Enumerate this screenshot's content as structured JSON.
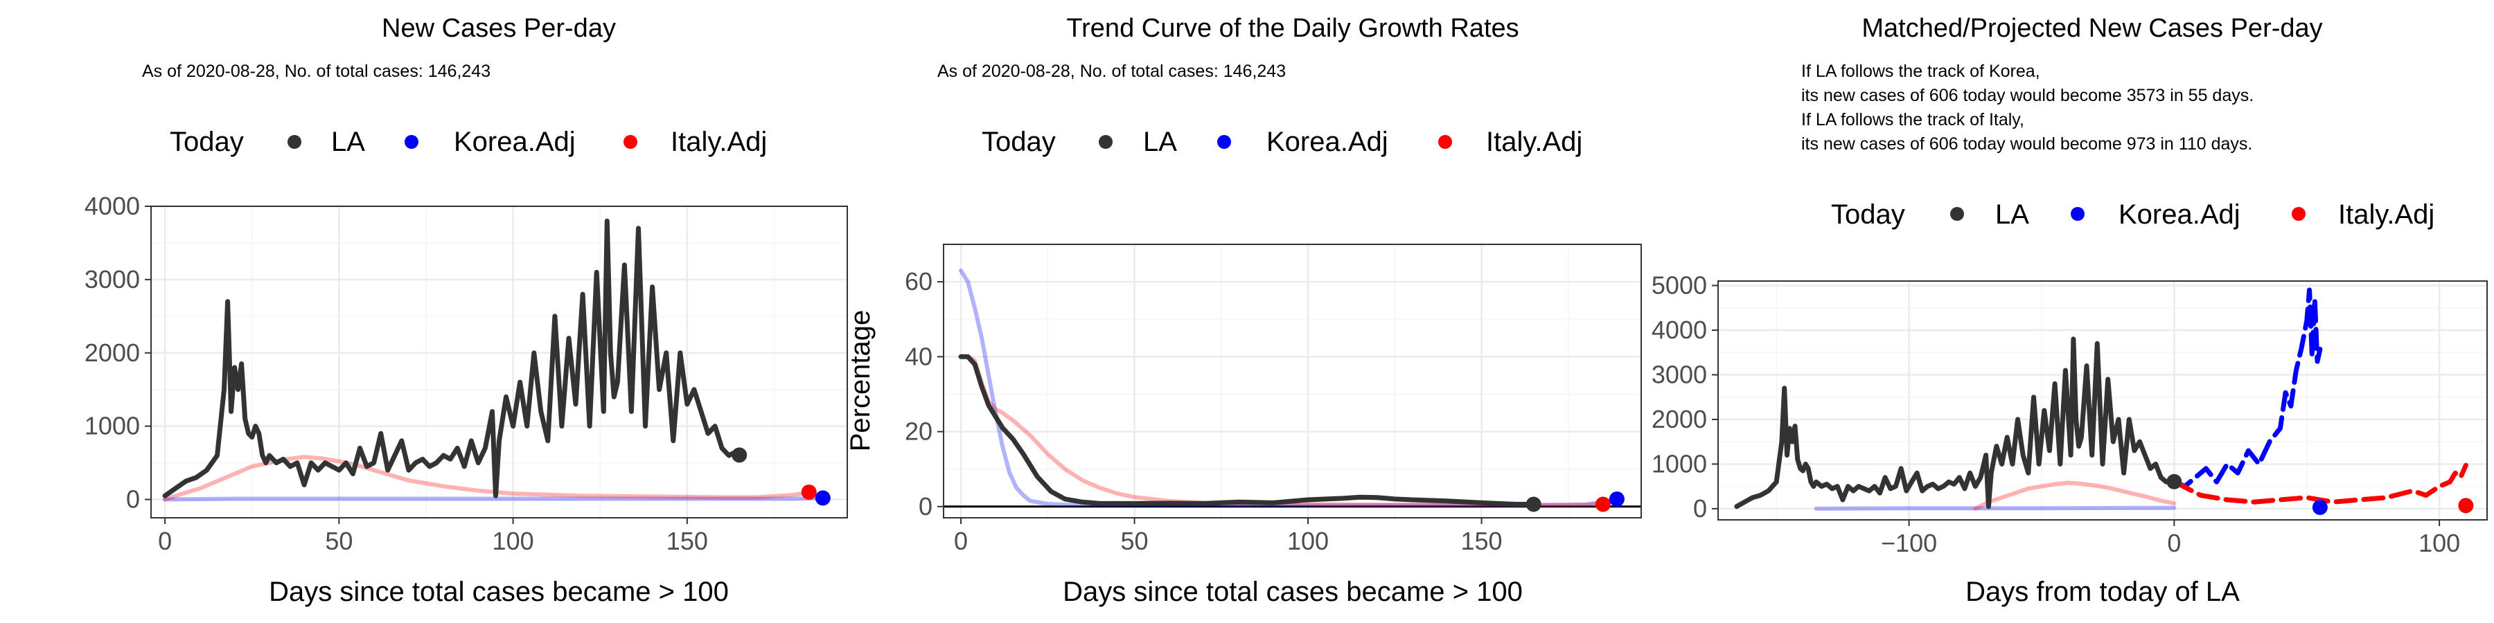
{
  "colors": {
    "LA": "#333333",
    "Korea.Adj": "#0000ff",
    "Italy.Adj": "#ff0000",
    "grid_major": "#ebebeb",
    "grid_minor": "#f5f5f5",
    "panel_border": "#333333"
  },
  "legend": {
    "label": "Today",
    "entries": [
      "LA",
      "Korea.Adj",
      "Italy.Adj"
    ]
  },
  "chart_data": [
    {
      "type": "line",
      "title": "New Cases Per-day",
      "notes": [
        "As of 2020-08-28, No. of total cases: 146,243"
      ],
      "xlabel": "Days since total cases became > 100",
      "ylabel": "",
      "xlim": [
        -4,
        196
      ],
      "ylim": [
        -250,
        4000
      ],
      "xticks": [
        0,
        50,
        100,
        150
      ],
      "yticks": [
        0,
        1000,
        2000,
        3000,
        4000
      ],
      "legend_position": "top",
      "grid": true,
      "hline_zero": false,
      "series": [
        {
          "name": "LA",
          "style": "solid",
          "opacity": 1,
          "x": [
            0,
            3,
            6,
            9,
            12,
            15,
            17,
            18,
            19,
            20,
            21,
            22,
            23,
            24,
            25,
            26,
            27,
            28,
            29,
            30,
            32,
            34,
            36,
            38,
            40,
            42,
            44,
            46,
            48,
            50,
            52,
            54,
            56,
            58,
            60,
            62,
            64,
            66,
            68,
            70,
            72,
            74,
            76,
            78,
            80,
            82,
            84,
            86,
            88,
            90,
            92,
            94,
            95,
            96,
            98,
            100,
            102,
            104,
            106,
            108,
            110,
            112,
            114,
            116,
            118,
            120,
            122,
            124,
            126,
            127,
            128,
            129,
            130,
            132,
            134,
            136,
            138,
            140,
            142,
            144,
            146,
            148,
            150,
            152,
            154,
            156,
            158,
            160,
            162,
            164,
            165
          ],
          "y": [
            50,
            150,
            250,
            300,
            400,
            600,
            1500,
            2700,
            1200,
            1800,
            1500,
            1850,
            1100,
            900,
            850,
            1000,
            900,
            600,
            500,
            600,
            500,
            550,
            450,
            500,
            200,
            500,
            400,
            500,
            450,
            400,
            500,
            350,
            700,
            450,
            500,
            900,
            400,
            600,
            800,
            400,
            500,
            550,
            450,
            500,
            600,
            550,
            700,
            450,
            800,
            500,
            700,
            1200,
            50,
            800,
            1400,
            1000,
            1600,
            1000,
            2000,
            1200,
            800,
            2500,
            1000,
            2200,
            1300,
            2800,
            1000,
            3100,
            1200,
            3800,
            2000,
            1400,
            1600,
            3200,
            1200,
            3700,
            1000,
            2900,
            1500,
            2000,
            800,
            2000,
            1300,
            1500,
            1200,
            900,
            1000,
            700,
            600,
            650,
            600
          ]
        },
        {
          "name": "Korea.Adj",
          "style": "solid",
          "opacity": 0.3,
          "x": [
            0,
            20,
            50,
            100,
            150,
            180,
            190
          ],
          "y": [
            0,
            10,
            10,
            10,
            10,
            10,
            20
          ]
        },
        {
          "name": "Italy.Adj",
          "style": "solid",
          "opacity": 0.3,
          "x": [
            0,
            5,
            10,
            15,
            20,
            25,
            30,
            35,
            40,
            45,
            50,
            55,
            60,
            65,
            70,
            80,
            90,
            100,
            120,
            140,
            160,
            170,
            180,
            186
          ],
          "y": [
            0,
            80,
            150,
            250,
            350,
            450,
            500,
            550,
            580,
            560,
            520,
            470,
            400,
            330,
            260,
            180,
            120,
            80,
            50,
            40,
            30,
            30,
            60,
            100
          ]
        }
      ],
      "today_points": [
        {
          "name": "LA",
          "x": 165,
          "y": 606
        },
        {
          "name": "Italy.Adj",
          "x": 185,
          "y": 100
        },
        {
          "name": "Korea.Adj",
          "x": 189,
          "y": 20
        }
      ]
    },
    {
      "type": "line",
      "title": "Trend Curve of the Daily Growth Rates",
      "notes": [
        "As of 2020-08-28, No. of total cases: 146,243"
      ],
      "xlabel": "Days since total cases became > 100",
      "ylabel": "Percentage",
      "xlim": [
        -5,
        196
      ],
      "ylim": [
        -3,
        70
      ],
      "xticks": [
        0,
        50,
        100,
        150
      ],
      "yticks": [
        0,
        20,
        40,
        60
      ],
      "legend_position": "top",
      "grid": true,
      "hline_zero": true,
      "series": [
        {
          "name": "LA",
          "style": "solid",
          "opacity": 1,
          "x": [
            0,
            2,
            4,
            6,
            8,
            10,
            12,
            15,
            18,
            22,
            26,
            30,
            35,
            40,
            50,
            60,
            70,
            80,
            90,
            100,
            110,
            115,
            120,
            125,
            130,
            140,
            150,
            160,
            165
          ],
          "y": [
            40,
            40,
            38,
            32,
            27,
            24,
            21,
            18,
            14,
            8,
            4,
            2,
            1.2,
            0.8,
            0.8,
            0.9,
            0.8,
            1.2,
            1.0,
            1.8,
            2.2,
            2.5,
            2.4,
            2.0,
            1.8,
            1.5,
            1.0,
            0.6,
            0.6
          ]
        },
        {
          "name": "Korea.Adj",
          "style": "solid",
          "opacity": 0.3,
          "x": [
            0,
            2,
            4,
            6,
            8,
            10,
            12,
            14,
            16,
            18,
            20,
            25,
            30,
            40,
            60,
            100,
            150,
            180,
            186,
            190
          ],
          "y": [
            63,
            60,
            53,
            45,
            35,
            25,
            16,
            9,
            5,
            3,
            1.5,
            0.7,
            0.5,
            0.4,
            0.3,
            0.3,
            0.3,
            0.5,
            1.5,
            2
          ]
        },
        {
          "name": "Italy.Adj",
          "style": "solid",
          "opacity": 0.3,
          "x": [
            0,
            2,
            4,
            6,
            8,
            10,
            12,
            15,
            20,
            25,
            30,
            35,
            40,
            45,
            50,
            60,
            70,
            80,
            100,
            120,
            150,
            170,
            180,
            185
          ],
          "y": [
            40,
            40,
            39,
            33,
            28,
            26,
            25,
            23,
            19,
            14,
            10,
            7,
            5,
            3.5,
            2.5,
            1.5,
            1.0,
            0.8,
            0.6,
            0.5,
            0.5,
            0.4,
            0.5,
            0.6
          ]
        }
      ],
      "today_points": [
        {
          "name": "LA",
          "x": 165,
          "y": 0.6
        },
        {
          "name": "Italy.Adj",
          "x": 185,
          "y": 0.6
        },
        {
          "name": "Korea.Adj",
          "x": 189,
          "y": 2
        }
      ]
    },
    {
      "type": "line",
      "title": "Matched/Projected New Cases Per-day",
      "notes": [
        "If LA follows the track of Korea,",
        "its new cases of 606 today would become 3573 in 55 days.",
        "If LA follows the track of Italy,",
        "its new cases of 606 today would become 973 in 110 days."
      ],
      "xlabel": "Days from today of LA",
      "ylabel": "",
      "xlim": [
        -172,
        118
      ],
      "ylim": [
        -250,
        5100
      ],
      "xticks": [
        -100,
        0,
        100
      ],
      "yticks": [
        0,
        1000,
        2000,
        3000,
        4000,
        5000
      ],
      "legend_position": "top",
      "grid": true,
      "hline_zero": false,
      "series": [
        {
          "name": "LA",
          "style": "solid",
          "opacity": 1,
          "x": [
            -165,
            -162,
            -159,
            -156,
            -153,
            -150,
            -148,
            -147,
            -146,
            -145,
            -144,
            -143,
            -142,
            -141,
            -140,
            -139,
            -138,
            -137,
            -136,
            -135,
            -133,
            -131,
            -129,
            -127,
            -125,
            -123,
            -121,
            -119,
            -117,
            -115,
            -113,
            -111,
            -109,
            -107,
            -105,
            -103,
            -101,
            -99,
            -97,
            -95,
            -93,
            -91,
            -89,
            -87,
            -85,
            -83,
            -81,
            -79,
            -77,
            -75,
            -73,
            -71,
            -70,
            -69,
            -67,
            -65,
            -63,
            -61,
            -59,
            -57,
            -55,
            -53,
            -51,
            -49,
            -47,
            -45,
            -43,
            -41,
            -39,
            -38,
            -37,
            -36,
            -35,
            -33,
            -31,
            -29,
            -27,
            -25,
            -23,
            -21,
            -19,
            -17,
            -15,
            -13,
            -11,
            -9,
            -7,
            -5,
            -3,
            -1,
            0
          ],
          "y": [
            50,
            150,
            250,
            300,
            400,
            600,
            1500,
            2700,
            1200,
            1800,
            1500,
            1850,
            1100,
            900,
            850,
            1000,
            900,
            600,
            500,
            600,
            500,
            550,
            450,
            500,
            200,
            500,
            400,
            500,
            450,
            400,
            500,
            350,
            700,
            450,
            500,
            900,
            400,
            600,
            800,
            400,
            500,
            550,
            450,
            500,
            600,
            550,
            700,
            450,
            800,
            500,
            700,
            1200,
            50,
            800,
            1400,
            1000,
            1600,
            1000,
            2000,
            1200,
            800,
            2500,
            1000,
            2200,
            1300,
            2800,
            1000,
            3100,
            1200,
            3800,
            2000,
            1400,
            1600,
            3200,
            1200,
            3700,
            1000,
            2900,
            1500,
            2000,
            800,
            2000,
            1300,
            1500,
            1200,
            900,
            1000,
            700,
            600,
            650,
            606
          ]
        },
        {
          "name": "Korea.Adj",
          "style": "solid",
          "opacity": 0.3,
          "x": [
            -135,
            -100,
            -50,
            0
          ],
          "y": [
            0,
            10,
            10,
            20
          ]
        },
        {
          "name": "Korea.Adj",
          "style": "dashed",
          "opacity": 1,
          "x": [
            0,
            4,
            8,
            12,
            16,
            20,
            24,
            28,
            32,
            36,
            40,
            42,
            44,
            46,
            48,
            50,
            51,
            52,
            53,
            54,
            55
          ],
          "y": [
            606,
            500,
            700,
            900,
            600,
            1000,
            800,
            1300,
            1000,
            1500,
            1800,
            2600,
            2300,
            3100,
            3600,
            4200,
            4900,
            3400,
            4700,
            3300,
            3573
          ]
        },
        {
          "name": "Italy.Adj",
          "style": "solid",
          "opacity": 0.3,
          "x": [
            -75,
            -70,
            -65,
            -60,
            -55,
            -50,
            -45,
            -40,
            -35,
            -30,
            -25,
            -20,
            -15,
            -10,
            -5,
            0
          ],
          "y": [
            0,
            150,
            250,
            350,
            450,
            500,
            550,
            580,
            560,
            520,
            470,
            400,
            330,
            260,
            180,
            120
          ]
        },
        {
          "name": "Italy.Adj",
          "style": "dashed",
          "opacity": 1,
          "x": [
            0,
            10,
            20,
            30,
            40,
            50,
            60,
            70,
            80,
            90,
            95,
            100,
            104,
            106,
            108,
            110
          ],
          "y": [
            606,
            300,
            200,
            150,
            200,
            250,
            150,
            200,
            250,
            400,
            300,
            500,
            600,
            800,
            700,
            973
          ]
        }
      ],
      "today_points": [
        {
          "name": "LA",
          "x": 0,
          "y": 606
        },
        {
          "name": "Korea.Adj",
          "x": 55,
          "y": 30
        },
        {
          "name": "Italy.Adj",
          "x": 110,
          "y": 70
        }
      ]
    }
  ]
}
